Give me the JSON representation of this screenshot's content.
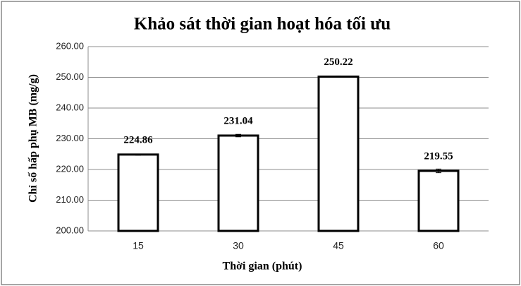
{
  "chart_data": {
    "type": "bar",
    "title": "Khảo sát thời gian hoạt hóa tối ưu",
    "x_label": "Thời gian (phút)",
    "y_label": "Chỉ số hấp phụ MB (mg/g)",
    "categories": [
      "15",
      "30",
      "45",
      "60"
    ],
    "values": [
      224.86,
      231.04,
      250.22,
      219.55
    ],
    "errors": [
      0.2,
      0.4,
      0.2,
      0.6
    ],
    "color": "#ffffff",
    "edge_color": "#000000",
    "ylim": [
      200,
      260
    ],
    "yticks": [
      {
        "value": 200,
        "label": "200.00"
      },
      {
        "value": 210,
        "label": "210.00"
      },
      {
        "value": 220,
        "label": "220.00"
      },
      {
        "value": 230,
        "label": "230.00"
      },
      {
        "value": 240,
        "label": "240.00"
      },
      {
        "value": 250,
        "label": "250.00"
      },
      {
        "value": 260,
        "label": "260.00"
      }
    ],
    "grid": true
  }
}
